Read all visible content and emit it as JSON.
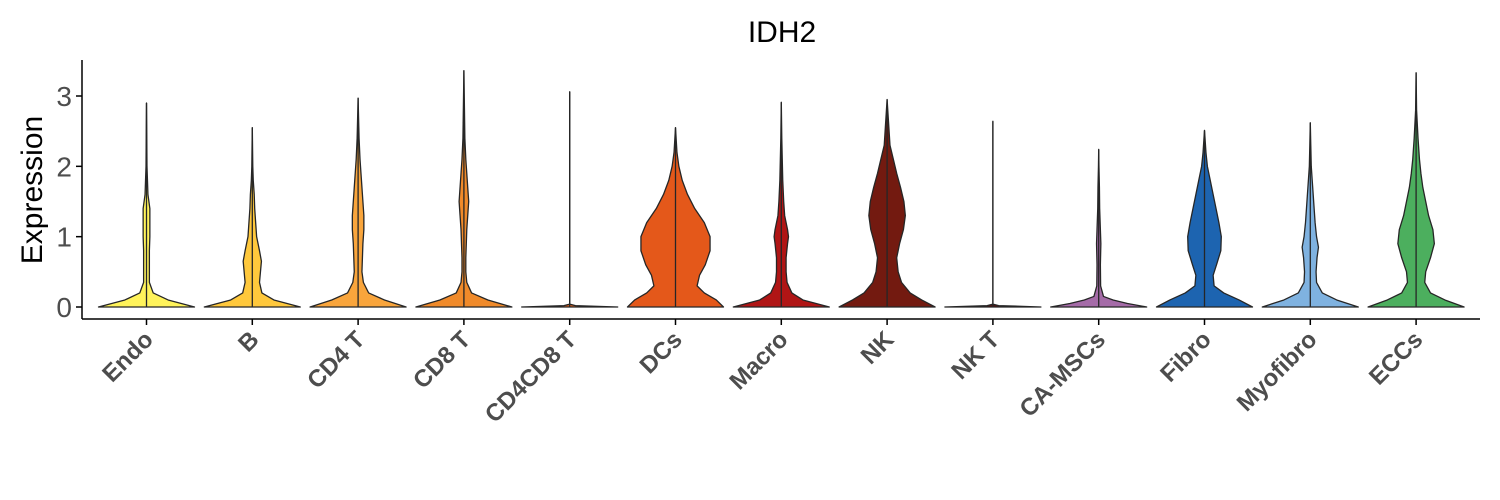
{
  "chart_data": {
    "type": "violin",
    "title": "IDH2",
    "ylabel": "Expression",
    "xlabel": "",
    "ylim": [
      -0.15,
      3.5
    ],
    "yticks": [
      0,
      1,
      2,
      3
    ],
    "grid": false,
    "legend": "none",
    "categories": [
      "Endo",
      "B",
      "CD4 T",
      "CD8 T",
      "CD4CD8 T",
      "DCs",
      "Macro",
      "NK",
      "NK T",
      "CA-MSCs",
      "Fibro",
      "Myofibro",
      "ECCs"
    ],
    "colors": [
      "#FFF35A",
      "#FFC83C",
      "#F9A53C",
      "#F08A2A",
      "#E8641E",
      "#E4581A",
      "#B01515",
      "#731A10",
      "#5C0F0C",
      "#A56BA8",
      "#1D64B0",
      "#7FB2E0",
      "#4CAF5E"
    ],
    "max_values": [
      2.9,
      2.55,
      2.97,
      3.36,
      3.06,
      2.55,
      2.91,
      2.95,
      2.64,
      2.24,
      2.51,
      2.62,
      3.33
    ],
    "density_profiles": [
      [
        [
          0,
          1
        ],
        [
          0.1,
          0.45
        ],
        [
          0.2,
          0.14
        ],
        [
          0.35,
          0.06
        ],
        [
          0.5,
          0.06
        ],
        [
          0.6,
          0.06
        ],
        [
          0.8,
          0.06
        ],
        [
          1.0,
          0.07
        ],
        [
          1.2,
          0.07
        ],
        [
          1.4,
          0.07
        ],
        [
          1.6,
          0.03
        ],
        [
          1.8,
          0.02
        ],
        [
          2.0,
          0.01
        ],
        [
          2.5,
          0.005
        ],
        [
          2.9,
          0
        ]
      ],
      [
        [
          0,
          1
        ],
        [
          0.1,
          0.45
        ],
        [
          0.2,
          0.2
        ],
        [
          0.35,
          0.15
        ],
        [
          0.5,
          0.17
        ],
        [
          0.65,
          0.19
        ],
        [
          0.8,
          0.15
        ],
        [
          1.0,
          0.09
        ],
        [
          1.2,
          0.07
        ],
        [
          1.4,
          0.05
        ],
        [
          1.6,
          0.04
        ],
        [
          1.8,
          0.02
        ],
        [
          2.0,
          0.01
        ],
        [
          2.55,
          0
        ]
      ],
      [
        [
          0,
          1
        ],
        [
          0.1,
          0.55
        ],
        [
          0.2,
          0.22
        ],
        [
          0.35,
          0.11
        ],
        [
          0.5,
          0.08
        ],
        [
          0.7,
          0.09
        ],
        [
          0.9,
          0.1
        ],
        [
          1.1,
          0.12
        ],
        [
          1.3,
          0.12
        ],
        [
          1.5,
          0.1
        ],
        [
          1.7,
          0.08
        ],
        [
          1.9,
          0.06
        ],
        [
          2.1,
          0.04
        ],
        [
          2.4,
          0.02
        ],
        [
          2.97,
          0
        ]
      ],
      [
        [
          0,
          1
        ],
        [
          0.1,
          0.5
        ],
        [
          0.2,
          0.16
        ],
        [
          0.35,
          0.06
        ],
        [
          0.5,
          0.04
        ],
        [
          0.7,
          0.04
        ],
        [
          0.9,
          0.05
        ],
        [
          1.1,
          0.06
        ],
        [
          1.3,
          0.08
        ],
        [
          1.5,
          0.1
        ],
        [
          1.7,
          0.08
        ],
        [
          1.9,
          0.06
        ],
        [
          2.1,
          0.04
        ],
        [
          2.4,
          0.02
        ],
        [
          3.36,
          0
        ]
      ],
      [
        [
          0,
          1
        ],
        [
          0.02,
          0.12
        ],
        [
          0.04,
          0
        ],
        [
          3.06,
          0
        ]
      ],
      [
        [
          0,
          1
        ],
        [
          0.1,
          0.85
        ],
        [
          0.2,
          0.6
        ],
        [
          0.3,
          0.45
        ],
        [
          0.45,
          0.5
        ],
        [
          0.6,
          0.62
        ],
        [
          0.8,
          0.72
        ],
        [
          1.0,
          0.72
        ],
        [
          1.2,
          0.6
        ],
        [
          1.4,
          0.4
        ],
        [
          1.6,
          0.25
        ],
        [
          1.8,
          0.14
        ],
        [
          2.0,
          0.07
        ],
        [
          2.2,
          0.03
        ],
        [
          2.55,
          0
        ]
      ],
      [
        [
          0,
          1
        ],
        [
          0.1,
          0.45
        ],
        [
          0.2,
          0.22
        ],
        [
          0.35,
          0.12
        ],
        [
          0.5,
          0.1
        ],
        [
          0.7,
          0.1
        ],
        [
          0.9,
          0.13
        ],
        [
          1.0,
          0.15
        ],
        [
          1.1,
          0.13
        ],
        [
          1.3,
          0.07
        ],
        [
          1.5,
          0.05
        ],
        [
          1.8,
          0.03
        ],
        [
          2.1,
          0.02
        ],
        [
          2.4,
          0.01
        ],
        [
          2.91,
          0
        ]
      ],
      [
        [
          0,
          1
        ],
        [
          0.1,
          0.72
        ],
        [
          0.2,
          0.48
        ],
        [
          0.35,
          0.3
        ],
        [
          0.5,
          0.23
        ],
        [
          0.7,
          0.2
        ],
        [
          0.9,
          0.26
        ],
        [
          1.1,
          0.34
        ],
        [
          1.3,
          0.38
        ],
        [
          1.5,
          0.35
        ],
        [
          1.7,
          0.28
        ],
        [
          1.9,
          0.2
        ],
        [
          2.1,
          0.13
        ],
        [
          2.3,
          0.06
        ],
        [
          2.95,
          0
        ]
      ],
      [
        [
          0,
          1
        ],
        [
          0.02,
          0.12
        ],
        [
          0.04,
          0
        ],
        [
          1.7,
          0
        ],
        [
          2.64,
          0
        ]
      ],
      [
        [
          0,
          1
        ],
        [
          0.05,
          0.6
        ],
        [
          0.1,
          0.3
        ],
        [
          0.15,
          0.1
        ],
        [
          0.3,
          0.04
        ],
        [
          0.6,
          0.035
        ],
        [
          0.9,
          0.045
        ],
        [
          1.1,
          0.035
        ],
        [
          1.4,
          0.02
        ],
        [
          1.7,
          0.015
        ],
        [
          2.0,
          0.005
        ],
        [
          2.24,
          0
        ]
      ],
      [
        [
          0,
          1
        ],
        [
          0.1,
          0.72
        ],
        [
          0.2,
          0.4
        ],
        [
          0.3,
          0.2
        ],
        [
          0.45,
          0.18
        ],
        [
          0.6,
          0.25
        ],
        [
          0.8,
          0.34
        ],
        [
          1.0,
          0.35
        ],
        [
          1.2,
          0.3
        ],
        [
          1.4,
          0.24
        ],
        [
          1.6,
          0.18
        ],
        [
          1.8,
          0.12
        ],
        [
          2.0,
          0.06
        ],
        [
          2.2,
          0.03
        ],
        [
          2.51,
          0
        ]
      ],
      [
        [
          0,
          1
        ],
        [
          0.1,
          0.55
        ],
        [
          0.2,
          0.25
        ],
        [
          0.35,
          0.13
        ],
        [
          0.5,
          0.12
        ],
        [
          0.7,
          0.14
        ],
        [
          0.85,
          0.17
        ],
        [
          1.0,
          0.13
        ],
        [
          1.2,
          0.1
        ],
        [
          1.4,
          0.08
        ],
        [
          1.6,
          0.06
        ],
        [
          1.8,
          0.04
        ],
        [
          2.0,
          0.02
        ],
        [
          2.3,
          0.01
        ],
        [
          2.62,
          0
        ]
      ],
      [
        [
          0,
          1
        ],
        [
          0.1,
          0.6
        ],
        [
          0.2,
          0.3
        ],
        [
          0.35,
          0.18
        ],
        [
          0.5,
          0.2
        ],
        [
          0.7,
          0.3
        ],
        [
          0.9,
          0.38
        ],
        [
          1.1,
          0.35
        ],
        [
          1.3,
          0.26
        ],
        [
          1.5,
          0.2
        ],
        [
          1.7,
          0.14
        ],
        [
          1.9,
          0.1
        ],
        [
          2.1,
          0.07
        ],
        [
          2.4,
          0.04
        ],
        [
          2.8,
          0.01
        ],
        [
          3.33,
          0
        ]
      ]
    ]
  }
}
